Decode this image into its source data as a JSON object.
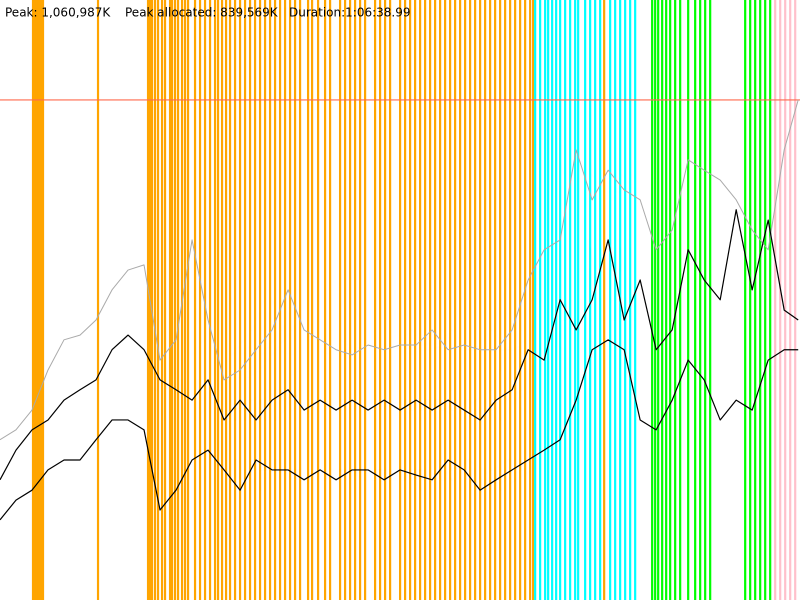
{
  "chart_data": {
    "type": "line",
    "annotations": [
      "Peak: 1,060,987K",
      "Peak allocated: 839,569K",
      "Duration:1:06:38.99"
    ],
    "peak": 1060987,
    "peak_color": "#ff6a4d",
    "xlim": [
      0,
      3998.99
    ],
    "ylim": [
      0,
      1273000
    ],
    "x": [
      0,
      80,
      160,
      240,
      320,
      400,
      480,
      560,
      640,
      720,
      800,
      880,
      960,
      1040,
      1120,
      1200,
      1280,
      1360,
      1440,
      1520,
      1600,
      1680,
      1760,
      1840,
      1920,
      2000,
      2080,
      2160,
      2240,
      2320,
      2400,
      2480,
      2560,
      2640,
      2720,
      2800,
      2880,
      2960,
      3040,
      3120,
      3200,
      3280,
      3360,
      3440,
      3520,
      3600,
      3680,
      3760,
      3840,
      3920,
      3990
    ],
    "series": [
      {
        "color": "#aaaaaa",
        "width": 1,
        "values": [
          340000,
          361000,
          403000,
          488000,
          552000,
          562000,
          594000,
          658000,
          700000,
          711000,
          509000,
          552000,
          764000,
          594000,
          467000,
          488000,
          531000,
          573000,
          658000,
          573000,
          552000,
          531000,
          520000,
          541000,
          531000,
          541000,
          541000,
          573000,
          531000,
          541000,
          531000,
          531000,
          573000,
          679000,
          743000,
          764000,
          955000,
          849000,
          912000,
          870000,
          849000,
          743000,
          785000,
          934000,
          912000,
          891000,
          849000,
          785000,
          743000,
          955000,
          1061000
        ]
      },
      {
        "color": "#000000",
        "width": 1.2,
        "values": [
          255000,
          318000,
          361000,
          382000,
          424000,
          446000,
          467000,
          531000,
          562000,
          531000,
          467000,
          446000,
          424000,
          467000,
          382000,
          424000,
          382000,
          424000,
          446000,
          403000,
          424000,
          403000,
          424000,
          403000,
          424000,
          403000,
          424000,
          403000,
          424000,
          403000,
          382000,
          424000,
          446000,
          531000,
          509000,
          637000,
          573000,
          637000,
          764000,
          594000,
          679000,
          531000,
          573000,
          743000,
          679000,
          637000,
          828000,
          658000,
          806000,
          615000,
          594000
        ]
      },
      {
        "color": "#000000",
        "width": 1.2,
        "values": [
          170000,
          212000,
          233000,
          276000,
          297000,
          297000,
          340000,
          382000,
          382000,
          361000,
          191000,
          233000,
          297000,
          318000,
          276000,
          233000,
          297000,
          276000,
          276000,
          255000,
          276000,
          255000,
          276000,
          276000,
          255000,
          276000,
          265000,
          255000,
          297000,
          276000,
          233000,
          255000,
          276000,
          297000,
          318000,
          340000,
          424000,
          531000,
          552000,
          531000,
          382000,
          361000,
          424000,
          509000,
          467000,
          382000,
          424000,
          403000,
          509000,
          531000,
          531000
        ]
      }
    ],
    "events": [
      {
        "color": "#ffa500",
        "x": [
          165,
          175,
          185,
          195,
          205,
          215,
          490,
          740,
          750,
          760,
          775,
          790,
          810,
          825,
          850,
          860,
          875,
          890,
          910,
          925,
          940,
          975,
          1000,
          1025,
          1050,
          1075,
          1090,
          1110,
          1130,
          1150,
          1175,
          1200,
          1225,
          1250,
          1275,
          1300,
          1325,
          1350,
          1375,
          1400,
          1425,
          1450,
          1475,
          1500,
          1540,
          1560,
          1590,
          1625,
          1650,
          1700,
          1725,
          1750,
          1775,
          1800,
          1825,
          1875,
          1900,
          1925,
          1950,
          2000,
          2025,
          2050,
          2075,
          2100,
          2125,
          2150,
          2175,
          2200,
          2225,
          2250,
          2275,
          2300,
          2325,
          2350,
          2375,
          2400,
          2425,
          2450,
          2475,
          2500,
          2525,
          2550,
          2575,
          2600,
          2625,
          2650,
          2665,
          3020
        ]
      },
      {
        "color": "#00ffff",
        "x": [
          2675,
          2700,
          2725,
          2740,
          2760,
          2780,
          2800,
          2825,
          2850,
          2875,
          2890,
          2925,
          2950,
          2975,
          3000,
          3050,
          3075,
          3100,
          3125,
          3150,
          3175
        ]
      },
      {
        "color": "#00ff00",
        "x": [
          3260,
          3275,
          3290,
          3310,
          3330,
          3350,
          3375,
          3400,
          3440,
          3475,
          3500,
          3525,
          3550,
          3725,
          3750,
          3775,
          3800,
          3825,
          3850
        ]
      },
      {
        "color": "#ffc0cb",
        "x": [
          3875,
          3900,
          3925,
          3950,
          3975
        ]
      }
    ]
  }
}
